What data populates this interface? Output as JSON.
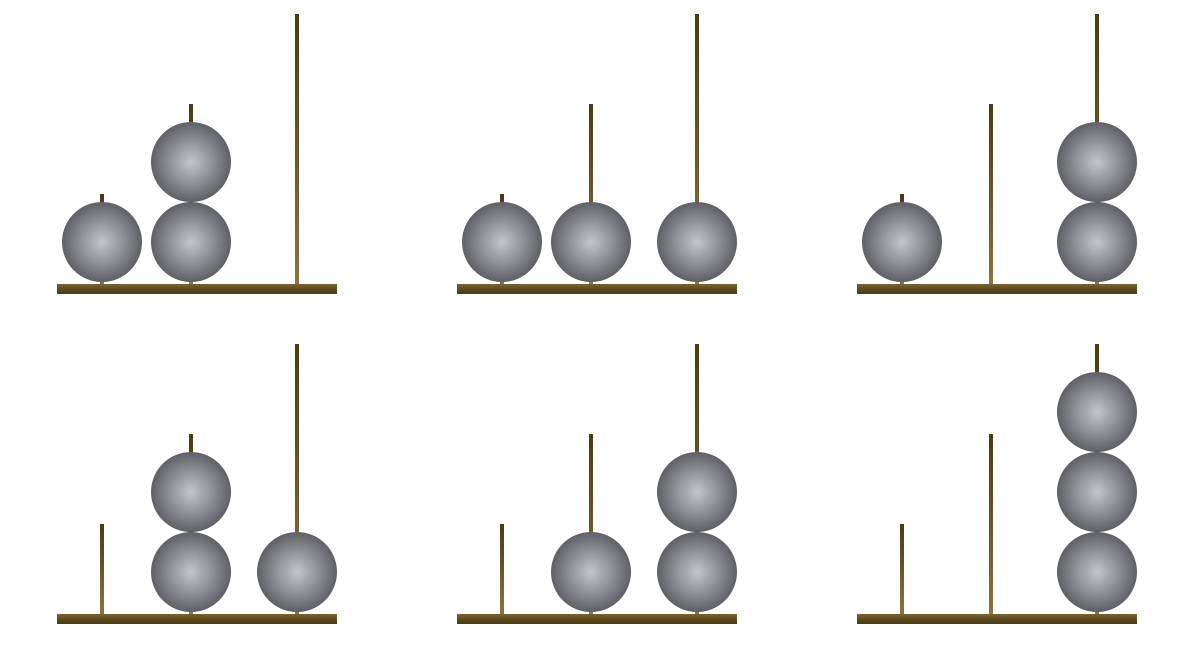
{
  "colors": {
    "background": "#ffffff",
    "wood_dark": "#4a3a14",
    "wood_mid": "#6f5a2a",
    "wood_light": "#8a7440",
    "ball_highlight": "#c4c5cb",
    "ball_mid": "#8e8f95",
    "ball_edge": "#5f6066"
  },
  "rod_heights": {
    "short": 1,
    "medium": 2,
    "tall": 3
  },
  "panels": [
    {
      "rods": [
        {
          "height": 1,
          "balls": 1
        },
        {
          "height": 2,
          "balls": 2
        },
        {
          "height": 3,
          "balls": 0
        }
      ]
    },
    {
      "rods": [
        {
          "height": 1,
          "balls": 1
        },
        {
          "height": 2,
          "balls": 1
        },
        {
          "height": 3,
          "balls": 1
        }
      ]
    },
    {
      "rods": [
        {
          "height": 1,
          "balls": 1
        },
        {
          "height": 2,
          "balls": 0
        },
        {
          "height": 3,
          "balls": 2
        }
      ]
    },
    {
      "rods": [
        {
          "height": 1,
          "balls": 0
        },
        {
          "height": 2,
          "balls": 2
        },
        {
          "height": 3,
          "balls": 1
        }
      ]
    },
    {
      "rods": [
        {
          "height": 1,
          "balls": 0
        },
        {
          "height": 2,
          "balls": 1
        },
        {
          "height": 3,
          "balls": 2
        }
      ]
    },
    {
      "rods": [
        {
          "height": 1,
          "balls": 0
        },
        {
          "height": 2,
          "balls": 0
        },
        {
          "height": 3,
          "balls": 3
        }
      ]
    }
  ]
}
